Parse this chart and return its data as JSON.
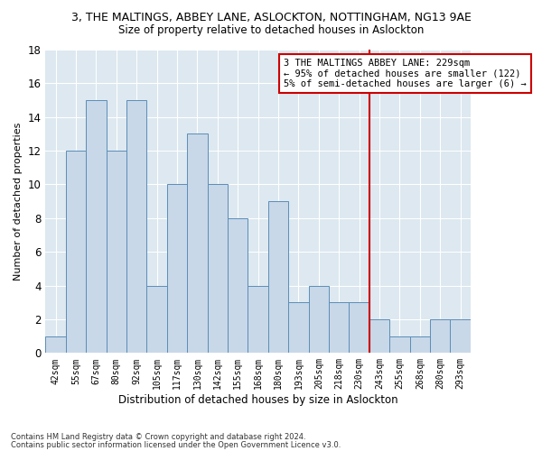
{
  "title": "3, THE MALTINGS, ABBEY LANE, ASLOCKTON, NOTTINGHAM, NG13 9AE",
  "subtitle": "Size of property relative to detached houses in Aslockton",
  "xlabel": "Distribution of detached houses by size in Aslockton",
  "ylabel": "Number of detached properties",
  "categories": [
    "42sqm",
    "55sqm",
    "67sqm",
    "80sqm",
    "92sqm",
    "105sqm",
    "117sqm",
    "130sqm",
    "142sqm",
    "155sqm",
    "168sqm",
    "180sqm",
    "193sqm",
    "205sqm",
    "218sqm",
    "230sqm",
    "243sqm",
    "255sqm",
    "268sqm",
    "280sqm",
    "293sqm"
  ],
  "values": [
    1,
    12,
    15,
    12,
    15,
    4,
    10,
    13,
    10,
    8,
    4,
    9,
    3,
    4,
    3,
    3,
    2,
    1,
    1,
    2,
    2
  ],
  "bar_color": "#c8d8e8",
  "bar_edge_color": "#5b8db8",
  "vline_x_index": 15.5,
  "vline_color": "#cc0000",
  "legend_text_line1": "3 THE MALTINGS ABBEY LANE: 229sqm",
  "legend_text_line2": "← 95% of detached houses are smaller (122)",
  "legend_text_line3": "5% of semi-detached houses are larger (6) →",
  "legend_box_color": "#cc0000",
  "legend_bg_color": "#ffffff",
  "ylim": [
    0,
    18
  ],
  "yticks": [
    0,
    2,
    4,
    6,
    8,
    10,
    12,
    14,
    16,
    18
  ],
  "background_color": "#dde8f0",
  "footer_line1": "Contains HM Land Registry data © Crown copyright and database right 2024.",
  "footer_line2": "Contains public sector information licensed under the Open Government Licence v3.0."
}
